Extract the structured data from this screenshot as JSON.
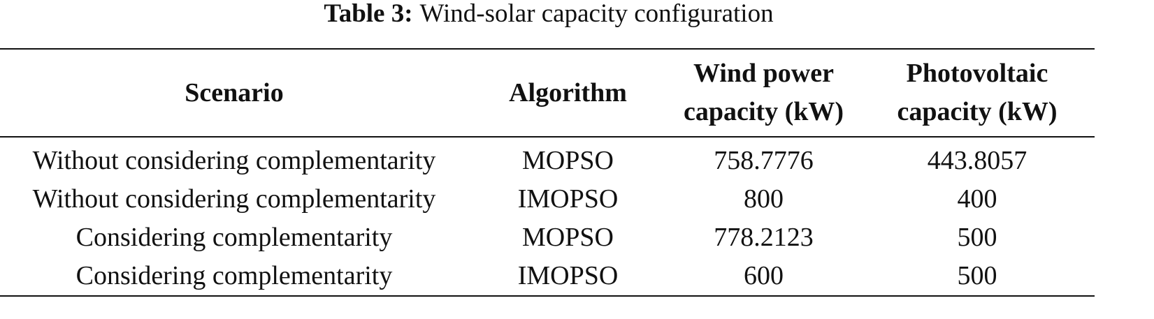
{
  "caption": {
    "label": "Table 3:",
    "text": "Wind-solar capacity configuration"
  },
  "table": {
    "header": [
      [
        "Scenario"
      ],
      [
        "Algorithm"
      ],
      [
        "Wind power",
        "capacity (kW)"
      ],
      [
        "Photovoltaic",
        "capacity (kW)"
      ]
    ],
    "rows": [
      [
        "Without considering complementarity",
        "MOPSO",
        "758.7776",
        "443.8057"
      ],
      [
        "Without considering complementarity",
        "IMOPSO",
        "800",
        "400"
      ],
      [
        "Considering complementarity",
        "MOPSO",
        "778.2123",
        "500"
      ],
      [
        "Considering complementarity",
        "IMOPSO",
        "600",
        "500"
      ]
    ]
  }
}
